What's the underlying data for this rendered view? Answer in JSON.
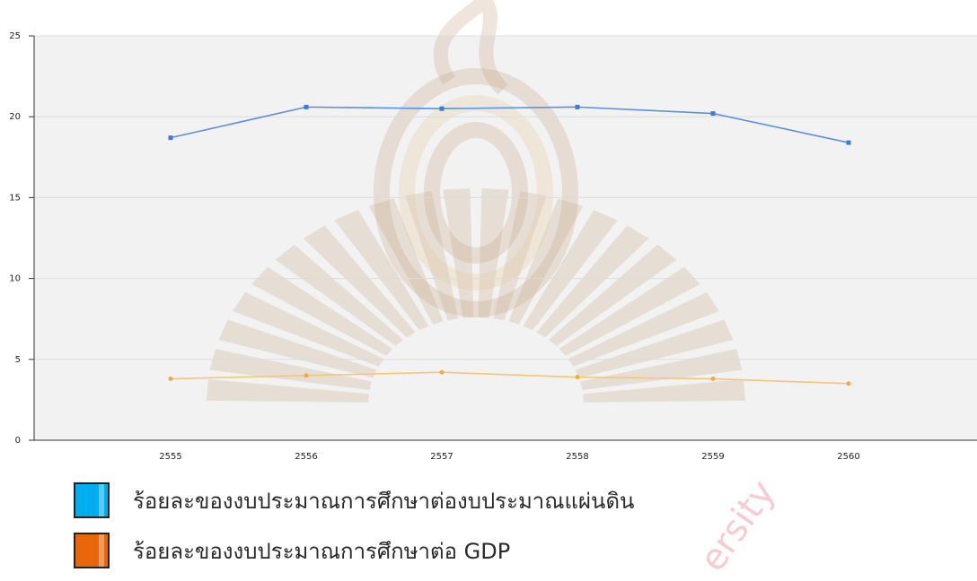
{
  "chart_data": {
    "type": "line",
    "categories": [
      "2555",
      "2556",
      "2557",
      "2558",
      "2559",
      "2560"
    ],
    "ylim": [
      0,
      25
    ],
    "yticks": [
      0,
      5,
      10,
      15,
      20,
      25
    ],
    "grid": true,
    "legend_position": "bottom-left",
    "series": [
      {
        "name": "ร้อยละของงบประมาณการศึกษาต่องบประมาณแผ่นดิน",
        "color": "#5b8fe0",
        "marker_color": "#3f7ad9",
        "values": [
          18.7,
          20.6,
          20.5,
          20.6,
          20.2,
          18.4
        ]
      },
      {
        "name": "ร้อยละของงบประมาณการศึกษาต่อ GDP",
        "color": "#f5c57a",
        "marker_color": "#f0ab45",
        "values": [
          3.8,
          4.0,
          4.2,
          3.9,
          3.8,
          3.5
        ]
      }
    ]
  },
  "legend": {
    "items": [
      {
        "label": "ร้อยละของงบประมาณการศึกษาต่องบประมาณแผ่นดิน",
        "color": "#00aeef"
      },
      {
        "label": "ร้อยละของงบประมาณการศึกษาต่อ GDP",
        "color": "#e8670a"
      }
    ]
  },
  "watermark": {
    "text": "ersity",
    "color": "#f4a8b4"
  }
}
